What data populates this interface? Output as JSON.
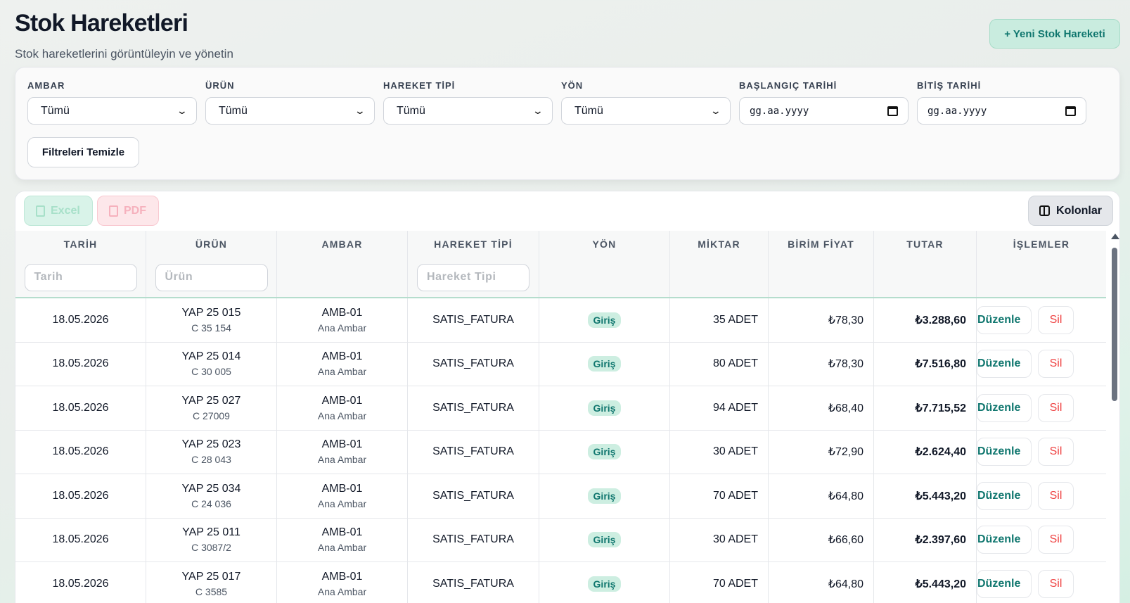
{
  "header": {
    "title": "Stok Hareketleri",
    "subtitle": "Stok hareketlerini görüntüleyin ve yönetin",
    "new_button": "+ Yeni Stok Hareketi"
  },
  "filters": {
    "ambar": {
      "label": "AMBAR",
      "value": "Tümü"
    },
    "urun": {
      "label": "ÜRÜN",
      "value": "Tümü"
    },
    "hareket_tipi": {
      "label": "HAREKET TİPİ",
      "value": "Tümü"
    },
    "yon": {
      "label": "YÖN",
      "value": "Tümü"
    },
    "baslangic": {
      "label": "BAŞLANGIÇ TARİHİ",
      "value": "gg.aa.yyyy"
    },
    "bitis": {
      "label": "BİTİŞ TARİHİ",
      "value": "gg.aa.yyyy"
    },
    "clear_button": "Filtreleri Temizle"
  },
  "toolbar": {
    "excel": "Excel",
    "pdf": "PDF",
    "columns": "Kolonlar"
  },
  "table": {
    "headers": [
      "TARİH",
      "ÜRÜN",
      "AMBAR",
      "HAREKET TİPİ",
      "YÖN",
      "MİKTAR",
      "BİRİM FİYAT",
      "TUTAR",
      "İŞLEMLER"
    ],
    "column_filters": {
      "tarih": "Tarih",
      "urun": "Ürün",
      "hareket_tipi": "Hareket Tipi"
    },
    "edit_label": "Düzenle",
    "delete_label": "Sil",
    "rows": [
      {
        "date": "18.05.2026",
        "product": "YAP 25 015",
        "product_code": "C 35 154",
        "warehouse": "AMB-01",
        "warehouse_name": "Ana Ambar",
        "type": "SATIS_FATURA",
        "direction": "Giriş",
        "qty": "35 ADET",
        "unit_price": "₺78,30",
        "total": "₺3.288,60"
      },
      {
        "date": "18.05.2026",
        "product": "YAP 25 014",
        "product_code": "C 30 005",
        "warehouse": "AMB-01",
        "warehouse_name": "Ana Ambar",
        "type": "SATIS_FATURA",
        "direction": "Giriş",
        "qty": "80 ADET",
        "unit_price": "₺78,30",
        "total": "₺7.516,80"
      },
      {
        "date": "18.05.2026",
        "product": "YAP 25 027",
        "product_code": "C 27009",
        "warehouse": "AMB-01",
        "warehouse_name": "Ana Ambar",
        "type": "SATIS_FATURA",
        "direction": "Giriş",
        "qty": "94 ADET",
        "unit_price": "₺68,40",
        "total": "₺7.715,52"
      },
      {
        "date": "18.05.2026",
        "product": "YAP 25 023",
        "product_code": "C 28 043",
        "warehouse": "AMB-01",
        "warehouse_name": "Ana Ambar",
        "type": "SATIS_FATURA",
        "direction": "Giriş",
        "qty": "30 ADET",
        "unit_price": "₺72,90",
        "total": "₺2.624,40"
      },
      {
        "date": "18.05.2026",
        "product": "YAP 25 034",
        "product_code": "C 24 036",
        "warehouse": "AMB-01",
        "warehouse_name": "Ana Ambar",
        "type": "SATIS_FATURA",
        "direction": "Giriş",
        "qty": "70 ADET",
        "unit_price": "₺64,80",
        "total": "₺5.443,20"
      },
      {
        "date": "18.05.2026",
        "product": "YAP 25 011",
        "product_code": "C 3087/2",
        "warehouse": "AMB-01",
        "warehouse_name": "Ana Ambar",
        "type": "SATIS_FATURA",
        "direction": "Giriş",
        "qty": "30 ADET",
        "unit_price": "₺66,60",
        "total": "₺2.397,60"
      },
      {
        "date": "18.05.2026",
        "product": "YAP 25 017",
        "product_code": "C 3585",
        "warehouse": "AMB-01",
        "warehouse_name": "Ana Ambar",
        "type": "SATIS_FATURA",
        "direction": "Giriş",
        "qty": "70 ADET",
        "unit_price": "₺64,80",
        "total": "₺5.443,20"
      }
    ]
  },
  "colors": {
    "accent": "#0f766e",
    "danger": "#ef4444",
    "badge_bg": "#cdeee1"
  }
}
